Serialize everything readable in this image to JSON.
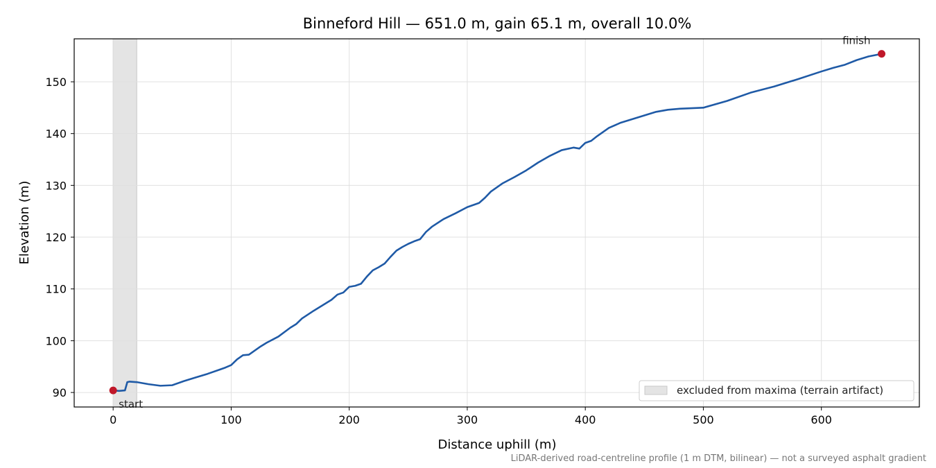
{
  "chart_data": {
    "type": "line",
    "title": "Binneford Hill — 651.0 m, gain 65.1 m, overall 10.0%",
    "xlabel": "Distance uphill (m)",
    "ylabel": "Elevation (m)",
    "xlim": [
      -33,
      683
    ],
    "ylim": [
      87.2,
      158.3
    ],
    "xticks": [
      0,
      100,
      200,
      300,
      400,
      500,
      600
    ],
    "yticks": [
      90,
      100,
      110,
      120,
      130,
      140,
      150
    ],
    "grid": true,
    "line_color": "#1f5aa6",
    "point_color": "#c0182a",
    "series": [
      {
        "x": [
          0,
          5,
          10,
          12,
          14,
          20,
          30,
          40,
          50,
          60,
          70,
          80,
          90,
          95,
          100,
          105,
          110,
          115,
          120,
          125,
          130,
          140,
          150,
          155,
          160,
          170,
          180,
          185,
          190,
          195,
          200,
          205,
          210,
          215,
          220,
          225,
          230,
          235,
          240,
          245,
          250,
          255,
          260,
          265,
          270,
          280,
          290,
          300,
          305,
          310,
          315,
          320,
          330,
          340,
          350,
          360,
          370,
          380,
          390,
          395,
          400,
          405,
          410,
          420,
          430,
          440,
          450,
          460,
          470,
          480,
          490,
          500,
          520,
          540,
          560,
          580,
          600,
          610,
          620,
          630,
          640,
          651
        ],
        "y": [
          90.4,
          90.3,
          90.4,
          92.0,
          92.1,
          92.0,
          91.6,
          91.3,
          91.4,
          92.2,
          92.9,
          93.6,
          94.4,
          94.8,
          95.3,
          96.4,
          97.2,
          97.3,
          98.1,
          98.9,
          99.6,
          100.8,
          102.5,
          103.2,
          104.3,
          105.8,
          107.2,
          107.9,
          108.9,
          109.3,
          110.4,
          110.6,
          111.0,
          112.4,
          113.6,
          114.2,
          114.9,
          116.2,
          117.4,
          118.1,
          118.7,
          119.2,
          119.6,
          121.0,
          122.0,
          123.5,
          124.6,
          125.8,
          126.2,
          126.6,
          127.6,
          128.8,
          130.4,
          131.6,
          132.9,
          134.4,
          135.7,
          136.8,
          137.3,
          137.1,
          138.2,
          138.6,
          139.5,
          141.1,
          142.1,
          142.8,
          143.5,
          144.2,
          144.6,
          144.8,
          144.9,
          145.0,
          146.3,
          147.9,
          149.1,
          150.5,
          152.0,
          152.7,
          153.3,
          154.2,
          154.9,
          155.4
        ]
      }
    ],
    "annotations": [
      {
        "text": "start",
        "x": 0,
        "y": 90.4
      },
      {
        "text": "finish",
        "x": 651,
        "y": 155.4
      }
    ],
    "shaded_region": {
      "x_from": 0,
      "x_to": 20,
      "color": "#e4e4e4"
    },
    "legend": {
      "position": "lower-right",
      "entries": [
        {
          "label": "excluded from maxima (terrain artifact)",
          "color": "#e4e4e4"
        }
      ]
    },
    "footnote": "LiDAR-derived road-centreline profile (1 m DTM, bilinear) — not a surveyed asphalt gradient"
  }
}
